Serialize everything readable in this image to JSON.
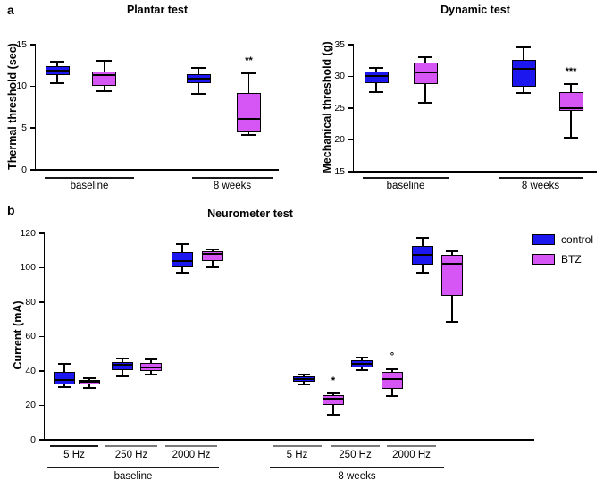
{
  "figure": {
    "panel_a_label": "a",
    "panel_b_label": "b"
  },
  "colors": {
    "control": "#1c17ee",
    "BTZ": "#d655f5",
    "box_border": "#000000",
    "underline_gray": "#7a7a7a",
    "underline_dark": "#1a1a1a"
  },
  "legend": {
    "position": "top-right-of-panel-b",
    "items": [
      {
        "label": "control",
        "series": "control"
      },
      {
        "label": "BTZ",
        "series": "BTZ"
      }
    ]
  },
  "chart_data": [
    {
      "id": "plantar",
      "panel": "a",
      "type": "box",
      "title": "Plantar test",
      "ylabel": "Thermal threshold (sec)",
      "ylim": [
        0,
        15
      ],
      "yticks": [
        0,
        5,
        10,
        15
      ],
      "grid": false,
      "groups": [
        "baseline",
        "8 weeks"
      ],
      "series": [
        "control",
        "BTZ"
      ],
      "boxes": [
        {
          "group": "baseline",
          "series": "control",
          "min": 10.3,
          "q1": 11.2,
          "median": 11.8,
          "q3": 12.3,
          "max": 12.9,
          "annotation": ""
        },
        {
          "group": "baseline",
          "series": "BTZ",
          "min": 9.3,
          "q1": 10.0,
          "median": 11.3,
          "q3": 11.7,
          "max": 13.0,
          "annotation": ""
        },
        {
          "group": "8 weeks",
          "series": "control",
          "min": 9.0,
          "q1": 10.3,
          "median": 10.8,
          "q3": 11.4,
          "max": 12.1,
          "annotation": ""
        },
        {
          "group": "8 weeks",
          "series": "BTZ",
          "min": 4.1,
          "q1": 4.4,
          "median": 6.0,
          "q3": 9.1,
          "max": 11.5,
          "annotation": "**"
        }
      ]
    },
    {
      "id": "dynamic",
      "panel": "a",
      "type": "box",
      "title": "Dynamic test",
      "ylabel": "Mechanical threshold (g)",
      "ylim": [
        15,
        35
      ],
      "yticks": [
        15,
        20,
        25,
        30,
        35
      ],
      "grid": false,
      "groups": [
        "baseline",
        "8 weeks"
      ],
      "series": [
        "control",
        "BTZ"
      ],
      "boxes": [
        {
          "group": "baseline",
          "series": "control",
          "min": 27.4,
          "q1": 28.8,
          "median": 30.0,
          "q3": 30.6,
          "max": 31.2,
          "annotation": ""
        },
        {
          "group": "baseline",
          "series": "BTZ",
          "min": 25.7,
          "q1": 28.6,
          "median": 30.5,
          "q3": 32.0,
          "max": 32.9,
          "annotation": ""
        },
        {
          "group": "8 weeks",
          "series": "control",
          "min": 27.3,
          "q1": 28.2,
          "median": 31.0,
          "q3": 32.4,
          "max": 34.5,
          "annotation": ""
        },
        {
          "group": "8 weeks",
          "series": "BTZ",
          "min": 20.2,
          "q1": 24.4,
          "median": 24.9,
          "q3": 27.4,
          "max": 28.7,
          "annotation": "***"
        }
      ]
    },
    {
      "id": "neurometer",
      "panel": "b",
      "type": "box",
      "title": "Neurometer test",
      "ylabel": "Current (mA)",
      "ylim": [
        0,
        120
      ],
      "yticks": [
        0,
        20,
        40,
        60,
        80,
        100,
        120
      ],
      "grid": false,
      "groups": [
        "baseline",
        "8 weeks"
      ],
      "subgroups": [
        "5 Hz",
        "250 Hz",
        "2000 Hz"
      ],
      "sub_labels": [
        "5 Hz",
        "250 Hz",
        "2000 Hz",
        "5 Hz",
        "250 Hz",
        "2000 Hz"
      ],
      "series": [
        "control",
        "BTZ"
      ],
      "boxes": [
        {
          "group": "baseline",
          "subgroup": "5 Hz",
          "series": "control",
          "min": 30.0,
          "q1": 31.5,
          "median": 34.5,
          "q3": 39.0,
          "max": 43.5,
          "annotation": ""
        },
        {
          "group": "baseline",
          "subgroup": "5 Hz",
          "series": "BTZ",
          "min": 29.5,
          "q1": 31.5,
          "median": 33.0,
          "q3": 34.5,
          "max": 35.5,
          "annotation": ""
        },
        {
          "group": "baseline",
          "subgroup": "250 Hz",
          "series": "control",
          "min": 36.5,
          "q1": 40.0,
          "median": 43.0,
          "q3": 44.5,
          "max": 46.5,
          "annotation": ""
        },
        {
          "group": "baseline",
          "subgroup": "250 Hz",
          "series": "BTZ",
          "min": 37.5,
          "q1": 39.5,
          "median": 41.5,
          "q3": 44.0,
          "max": 46.0,
          "annotation": ""
        },
        {
          "group": "baseline",
          "subgroup": "2000 Hz",
          "series": "control",
          "min": 96.5,
          "q1": 99.5,
          "median": 103.5,
          "q3": 108.5,
          "max": 113.0,
          "annotation": ""
        },
        {
          "group": "baseline",
          "subgroup": "2000 Hz",
          "series": "BTZ",
          "min": 100.0,
          "q1": 103.5,
          "median": 107.5,
          "q3": 109.0,
          "max": 110.0,
          "annotation": ""
        },
        {
          "group": "8 weeks",
          "subgroup": "5 Hz",
          "series": "control",
          "min": 31.5,
          "q1": 33.0,
          "median": 35.0,
          "q3": 36.5,
          "max": 37.5,
          "annotation": ""
        },
        {
          "group": "8 weeks",
          "subgroup": "5 Hz",
          "series": "BTZ",
          "min": 14.0,
          "q1": 19.5,
          "median": 23.5,
          "q3": 25.5,
          "max": 26.5,
          "annotation": "*"
        },
        {
          "group": "8 weeks",
          "subgroup": "250 Hz",
          "series": "control",
          "min": 40.0,
          "q1": 41.5,
          "median": 43.5,
          "q3": 45.5,
          "max": 47.5,
          "annotation": ""
        },
        {
          "group": "8 weeks",
          "subgroup": "250 Hz",
          "series": "BTZ",
          "min": 25.0,
          "q1": 29.0,
          "median": 35.0,
          "q3": 39.0,
          "max": 40.5,
          "annotation": "°"
        },
        {
          "group": "8 weeks",
          "subgroup": "2000 Hz",
          "series": "control",
          "min": 96.5,
          "q1": 101.5,
          "median": 107.0,
          "q3": 112.0,
          "max": 117.0,
          "annotation": ""
        },
        {
          "group": "8 weeks",
          "subgroup": "2000 Hz",
          "series": "BTZ",
          "min": 68.0,
          "q1": 83.0,
          "median": 102.0,
          "q3": 107.0,
          "max": 109.0,
          "annotation": ""
        }
      ]
    }
  ]
}
